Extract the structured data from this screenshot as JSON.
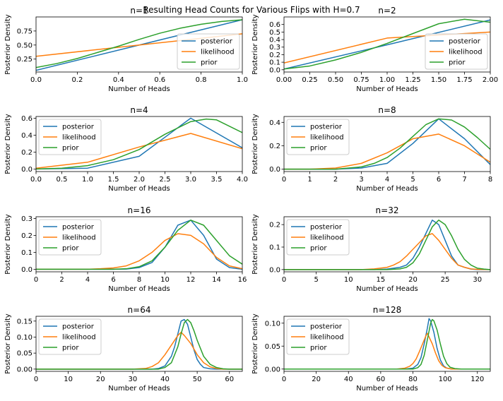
{
  "suptitle": "Resulting Head Counts for Various Flips with H=0.7",
  "colors": {
    "posterior": "#1f77b4",
    "likelihood": "#ff7f0e",
    "prior": "#2ca02c",
    "axis": "#000000",
    "legend_border": "#cccccc"
  },
  "chart_data": [
    {
      "type": "line",
      "title": "n=1",
      "xlabel": "Number of Heads",
      "ylabel": "Posterior Density",
      "xlim": [
        0,
        1
      ],
      "ylim": [
        0.02,
        1.0
      ],
      "xticks": [
        0,
        0.2,
        0.4,
        0.6,
        0.8,
        1.0
      ],
      "xtick_labels": [
        "0.0",
        "0.2",
        "0.4",
        "0.6",
        "0.8",
        "1.0"
      ],
      "yticks": [
        0.25,
        0.5,
        0.75
      ],
      "ytick_labels": [
        "0.25",
        "0.50",
        "0.75"
      ],
      "legend": "bottom-right",
      "legend_labels": [
        "posterior",
        "likelihood",
        "prior"
      ],
      "series": [
        {
          "name": "posterior",
          "x": [
            0,
            1
          ],
          "y": [
            0.05,
            0.95
          ]
        },
        {
          "name": "likelihood",
          "x": [
            0,
            1
          ],
          "y": [
            0.3,
            0.7
          ]
        },
        {
          "name": "prior",
          "x": [
            0,
            0.1,
            0.2,
            0.3,
            0.4,
            0.5,
            0.6,
            0.7,
            0.8,
            0.9,
            1.0
          ],
          "y": [
            0.1,
            0.17,
            0.26,
            0.37,
            0.48,
            0.6,
            0.71,
            0.8,
            0.87,
            0.92,
            0.95
          ]
        }
      ]
    },
    {
      "type": "line",
      "title": "n=2",
      "xlabel": "Number of Heads",
      "ylabel": "Posterior Density",
      "xlim": [
        0,
        2
      ],
      "ylim": [
        -0.03,
        0.7
      ],
      "xticks": [
        0,
        0.25,
        0.5,
        0.75,
        1.0,
        1.25,
        1.5,
        1.75,
        2.0
      ],
      "xtick_labels": [
        "0.00",
        "0.25",
        "0.50",
        "0.75",
        "1.00",
        "1.25",
        "1.50",
        "1.75",
        "2.00"
      ],
      "yticks": [
        0,
        0.1,
        0.2,
        0.3,
        0.4,
        0.5,
        0.6
      ],
      "ytick_labels": [
        "0.0",
        "0.1",
        "0.2",
        "0.3",
        "0.4",
        "0.5",
        "0.6"
      ],
      "legend": "bottom-right",
      "legend_labels": [
        "posterior",
        "likelihood",
        "prior"
      ],
      "series": [
        {
          "name": "posterior",
          "x": [
            0,
            1,
            2
          ],
          "y": [
            0.01,
            0.33,
            0.66
          ]
        },
        {
          "name": "likelihood",
          "x": [
            0,
            1,
            2
          ],
          "y": [
            0.09,
            0.42,
            0.5
          ]
        },
        {
          "name": "prior",
          "x": [
            0,
            0.25,
            0.5,
            0.75,
            1.0,
            1.25,
            1.5,
            1.75,
            2.0
          ],
          "y": [
            0.01,
            0.05,
            0.13,
            0.23,
            0.35,
            0.48,
            0.61,
            0.67,
            0.63
          ]
        }
      ]
    },
    {
      "type": "line",
      "title": "n=4",
      "xlabel": "Number of Heads",
      "ylabel": "Posterior Density",
      "xlim": [
        0,
        4
      ],
      "ylim": [
        -0.03,
        0.62
      ],
      "xticks": [
        0,
        0.5,
        1,
        1.5,
        2,
        2.5,
        3,
        3.5,
        4
      ],
      "xtick_labels": [
        "0.0",
        "0.5",
        "1.0",
        "1.5",
        "2.0",
        "2.5",
        "3.0",
        "3.5",
        "4.0"
      ],
      "yticks": [
        0,
        0.2,
        0.4,
        0.6
      ],
      "ytick_labels": [
        "0.0",
        "0.2",
        "0.4",
        "0.6"
      ],
      "legend": "top-left",
      "legend_labels": [
        "posterior",
        "likelihood",
        "prior"
      ],
      "series": [
        {
          "name": "posterior",
          "x": [
            0,
            1,
            2,
            3,
            4
          ],
          "y": [
            0.0,
            0.01,
            0.15,
            0.6,
            0.25
          ]
        },
        {
          "name": "likelihood",
          "x": [
            0,
            1,
            2,
            3,
            4
          ],
          "y": [
            0.01,
            0.08,
            0.26,
            0.42,
            0.24
          ]
        },
        {
          "name": "prior",
          "x": [
            0,
            0.5,
            1.0,
            1.5,
            2.0,
            2.5,
            3.0,
            3.3,
            3.5,
            4.0
          ],
          "y": [
            0.0,
            0.01,
            0.04,
            0.11,
            0.23,
            0.41,
            0.56,
            0.59,
            0.58,
            0.43
          ]
        }
      ]
    },
    {
      "type": "line",
      "title": "n=8",
      "xlabel": "Number of Heads",
      "ylabel": "Posterior Density",
      "xlim": [
        0,
        8
      ],
      "ylim": [
        -0.02,
        0.45
      ],
      "xticks": [
        0,
        1,
        2,
        3,
        4,
        5,
        6,
        7,
        8
      ],
      "xtick_labels": [
        "0",
        "1",
        "2",
        "3",
        "4",
        "5",
        "6",
        "7",
        "8"
      ],
      "yticks": [
        0,
        0.2,
        0.4
      ],
      "ytick_labels": [
        "0.0",
        "0.2",
        "0.4"
      ],
      "legend": "top-left",
      "legend_labels": [
        "posterior",
        "likelihood",
        "prior"
      ],
      "series": [
        {
          "name": "posterior",
          "x": [
            0,
            1,
            2,
            3,
            4,
            5,
            6,
            7,
            8
          ],
          "y": [
            0.0,
            0.0,
            0.0,
            0.01,
            0.05,
            0.22,
            0.43,
            0.26,
            0.04
          ]
        },
        {
          "name": "likelihood",
          "x": [
            0,
            1,
            2,
            3,
            4,
            5,
            6,
            7,
            8
          ],
          "y": [
            0.0,
            0.0,
            0.01,
            0.05,
            0.14,
            0.26,
            0.3,
            0.2,
            0.06
          ]
        },
        {
          "name": "prior",
          "x": [
            0,
            1,
            2,
            3,
            3.5,
            4,
            4.5,
            5,
            5.5,
            6,
            6.5,
            7,
            7.5,
            8
          ],
          "y": [
            0.0,
            0.0,
            0.0,
            0.02,
            0.05,
            0.1,
            0.18,
            0.28,
            0.38,
            0.43,
            0.42,
            0.36,
            0.27,
            0.17
          ]
        }
      ]
    },
    {
      "type": "line",
      "title": "n=16",
      "xlabel": "Number of Heads",
      "ylabel": "Posterior Density",
      "xlim": [
        0,
        16
      ],
      "ylim": [
        -0.015,
        0.31
      ],
      "xticks": [
        0,
        2,
        4,
        6,
        8,
        10,
        12,
        14,
        16
      ],
      "xtick_labels": [
        "0",
        "2",
        "4",
        "6",
        "8",
        "10",
        "12",
        "14",
        "16"
      ],
      "yticks": [
        0,
        0.1,
        0.2,
        0.3
      ],
      "ytick_labels": [
        "0.0",
        "0.1",
        "0.2",
        "0.3"
      ],
      "legend": "top-left",
      "legend_labels": [
        "posterior",
        "likelihood",
        "prior"
      ],
      "series": [
        {
          "name": "posterior",
          "x": [
            0,
            4,
            6,
            7,
            8,
            9,
            10,
            11,
            12,
            13,
            14,
            15,
            16
          ],
          "y": [
            0.0,
            0.0,
            0.0,
            0.001,
            0.01,
            0.04,
            0.13,
            0.26,
            0.29,
            0.2,
            0.06,
            0.01,
            0.0
          ]
        },
        {
          "name": "likelihood",
          "x": [
            0,
            4,
            5,
            6,
            7,
            8,
            9,
            10,
            11,
            12,
            13,
            14,
            15,
            16
          ],
          "y": [
            0.0,
            0.0,
            0.003,
            0.008,
            0.02,
            0.05,
            0.1,
            0.17,
            0.21,
            0.2,
            0.15,
            0.07,
            0.02,
            0.003
          ]
        },
        {
          "name": "prior",
          "x": [
            0,
            6,
            7,
            8,
            9,
            10,
            11,
            12,
            13,
            14,
            15,
            16
          ],
          "y": [
            0.0,
            0.0,
            0.003,
            0.015,
            0.05,
            0.13,
            0.23,
            0.29,
            0.26,
            0.17,
            0.08,
            0.03
          ]
        }
      ]
    },
    {
      "type": "line",
      "title": "n=32",
      "xlabel": "Number of Heads",
      "ylabel": "Posterior Density",
      "xlim": [
        0,
        32
      ],
      "ylim": [
        -0.01,
        0.235
      ],
      "xticks": [
        0,
        5,
        10,
        15,
        20,
        25,
        30
      ],
      "xtick_labels": [
        "0",
        "5",
        "10",
        "15",
        "20",
        "25",
        "30"
      ],
      "yticks": [
        0,
        0.1,
        0.2
      ],
      "ytick_labels": [
        "0.0",
        "0.1",
        "0.2"
      ],
      "legend": "top-left",
      "legend_labels": [
        "posterior",
        "likelihood",
        "prior"
      ],
      "series": [
        {
          "name": "posterior",
          "x": [
            0,
            14,
            16,
            18,
            19,
            20,
            21,
            22,
            23,
            24,
            25,
            26,
            27,
            28,
            29,
            30,
            32
          ],
          "y": [
            0.0,
            0.0,
            0.002,
            0.01,
            0.02,
            0.05,
            0.1,
            0.16,
            0.22,
            0.2,
            0.13,
            0.06,
            0.02,
            0.01,
            0.002,
            0.0,
            0.0
          ]
        },
        {
          "name": "likelihood",
          "x": [
            0,
            12,
            14,
            16,
            17,
            18,
            19,
            20,
            21,
            22,
            23,
            24,
            25,
            26,
            27,
            28,
            29,
            30,
            32
          ],
          "y": [
            0.0,
            0.0,
            0.003,
            0.01,
            0.02,
            0.035,
            0.06,
            0.09,
            0.12,
            0.15,
            0.16,
            0.13,
            0.09,
            0.05,
            0.02,
            0.01,
            0.003,
            0.001,
            0.0
          ]
        },
        {
          "name": "prior",
          "x": [
            0,
            16,
            18,
            19,
            20,
            21,
            22,
            23,
            24,
            25,
            26,
            27,
            28,
            29,
            30,
            31,
            32
          ],
          "y": [
            0.0,
            0.0,
            0.003,
            0.01,
            0.03,
            0.07,
            0.13,
            0.19,
            0.22,
            0.2,
            0.15,
            0.09,
            0.045,
            0.02,
            0.006,
            0.002,
            0.0
          ]
        }
      ]
    },
    {
      "type": "line",
      "title": "n=64",
      "xlabel": "Number of Heads",
      "ylabel": "Posterior Density",
      "xlim": [
        0,
        64
      ],
      "ylim": [
        -0.007,
        0.165
      ],
      "xticks": [
        0,
        10,
        20,
        30,
        40,
        50,
        60
      ],
      "xtick_labels": [
        "0",
        "10",
        "20",
        "30",
        "40",
        "50",
        "60"
      ],
      "yticks": [
        0,
        0.05,
        0.1,
        0.15
      ],
      "ytick_labels": [
        "0.00",
        "0.05",
        "0.10",
        "0.15"
      ],
      "legend": "top-left",
      "legend_labels": [
        "posterior",
        "likelihood",
        "prior"
      ],
      "series": [
        {
          "name": "posterior",
          "x": [
            0,
            36,
            38,
            40,
            42,
            43,
            44,
            45,
            46,
            47,
            48,
            49,
            50,
            51,
            52,
            54,
            56,
            64
          ],
          "y": [
            0.0,
            0.0,
            0.002,
            0.01,
            0.04,
            0.07,
            0.11,
            0.15,
            0.155,
            0.14,
            0.1,
            0.06,
            0.03,
            0.015,
            0.005,
            0.001,
            0.0,
            0.0
          ]
        },
        {
          "name": "likelihood",
          "x": [
            0,
            30,
            34,
            36,
            38,
            40,
            42,
            44,
            45,
            46,
            48,
            50,
            52,
            54,
            56,
            58,
            64
          ],
          "y": [
            0.0,
            0.0,
            0.002,
            0.008,
            0.02,
            0.045,
            0.075,
            0.105,
            0.115,
            0.105,
            0.08,
            0.045,
            0.02,
            0.007,
            0.002,
            0.0,
            0.0
          ]
        },
        {
          "name": "prior",
          "x": [
            0,
            38,
            40,
            42,
            44,
            45,
            46,
            47,
            48,
            49,
            50,
            52,
            54,
            56,
            58,
            60,
            64
          ],
          "y": [
            0.0,
            0.0,
            0.005,
            0.02,
            0.07,
            0.11,
            0.145,
            0.155,
            0.145,
            0.12,
            0.09,
            0.04,
            0.015,
            0.005,
            0.001,
            0.0,
            0.0
          ]
        }
      ]
    },
    {
      "type": "line",
      "title": "n=128",
      "xlabel": "Number of Heads",
      "ylabel": "Posterior Density",
      "xlim": [
        0,
        128
      ],
      "ylim": [
        -0.005,
        0.115
      ],
      "xticks": [
        0,
        20,
        40,
        60,
        80,
        100,
        120
      ],
      "xtick_labels": [
        "0",
        "20",
        "40",
        "60",
        "80",
        "100",
        "120"
      ],
      "yticks": [
        0,
        0.05,
        0.1
      ],
      "ytick_labels": [
        "0.00",
        "0.05",
        "0.10"
      ],
      "legend": "top-left",
      "legend_labels": [
        "posterior",
        "likelihood",
        "prior"
      ],
      "series": [
        {
          "name": "posterior",
          "x": [
            0,
            75,
            80,
            83,
            85,
            87,
            89,
            90,
            91,
            93,
            95,
            97,
            99,
            101,
            104,
            110,
            128
          ],
          "y": [
            0.0,
            0.0,
            0.002,
            0.01,
            0.025,
            0.055,
            0.09,
            0.11,
            0.105,
            0.08,
            0.045,
            0.02,
            0.007,
            0.002,
            0.0,
            0.0,
            0.0
          ]
        },
        {
          "name": "likelihood",
          "x": [
            0,
            70,
            75,
            78,
            80,
            82,
            84,
            86,
            88,
            89,
            90,
            92,
            94,
            96,
            98,
            100,
            104,
            110,
            128
          ],
          "y": [
            0.0,
            0.0,
            0.002,
            0.006,
            0.012,
            0.022,
            0.038,
            0.055,
            0.072,
            0.078,
            0.07,
            0.055,
            0.035,
            0.018,
            0.008,
            0.003,
            0.0,
            0.0,
            0.0
          ]
        },
        {
          "name": "prior",
          "x": [
            0,
            80,
            83,
            85,
            87,
            89,
            91,
            92,
            93,
            95,
            97,
            99,
            101,
            103,
            106,
            110,
            128
          ],
          "y": [
            0.0,
            0.0,
            0.003,
            0.01,
            0.03,
            0.065,
            0.1,
            0.108,
            0.105,
            0.085,
            0.055,
            0.028,
            0.012,
            0.004,
            0.001,
            0.0,
            0.0
          ]
        }
      ]
    }
  ]
}
